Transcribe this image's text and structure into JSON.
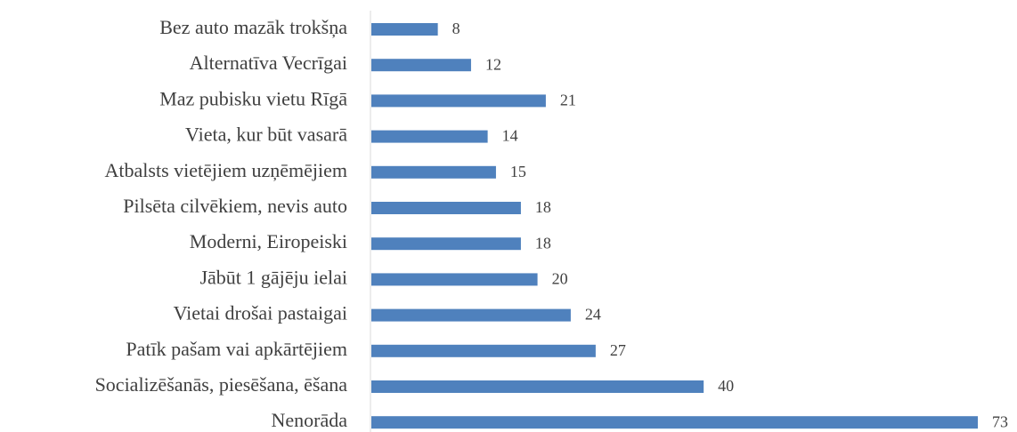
{
  "chart_data": {
    "type": "barh",
    "categories": [
      "Bez auto mazāk trokšņa",
      "Alternatīva Vecrīgai",
      "Maz pubisku vietu Rīgā",
      "Vieta, kur būt vasarā",
      "Atbalsts vietējiem uzņēmējiem",
      "Pilsēta cilvēkiem, nevis auto",
      "Moderni, Eiropeiski",
      "Jābūt 1 gājēju ielai",
      "Vietai drošai pastaigai",
      "Patīk pašam vai apkārtējiem",
      "Socializēšanās, piesēšana, ēšana",
      "Nenorāda"
    ],
    "values": [
      8,
      12,
      21,
      14,
      15,
      18,
      18,
      20,
      24,
      27,
      40,
      73
    ],
    "color": "#4f81bd",
    "xlim": [
      0,
      73
    ]
  }
}
